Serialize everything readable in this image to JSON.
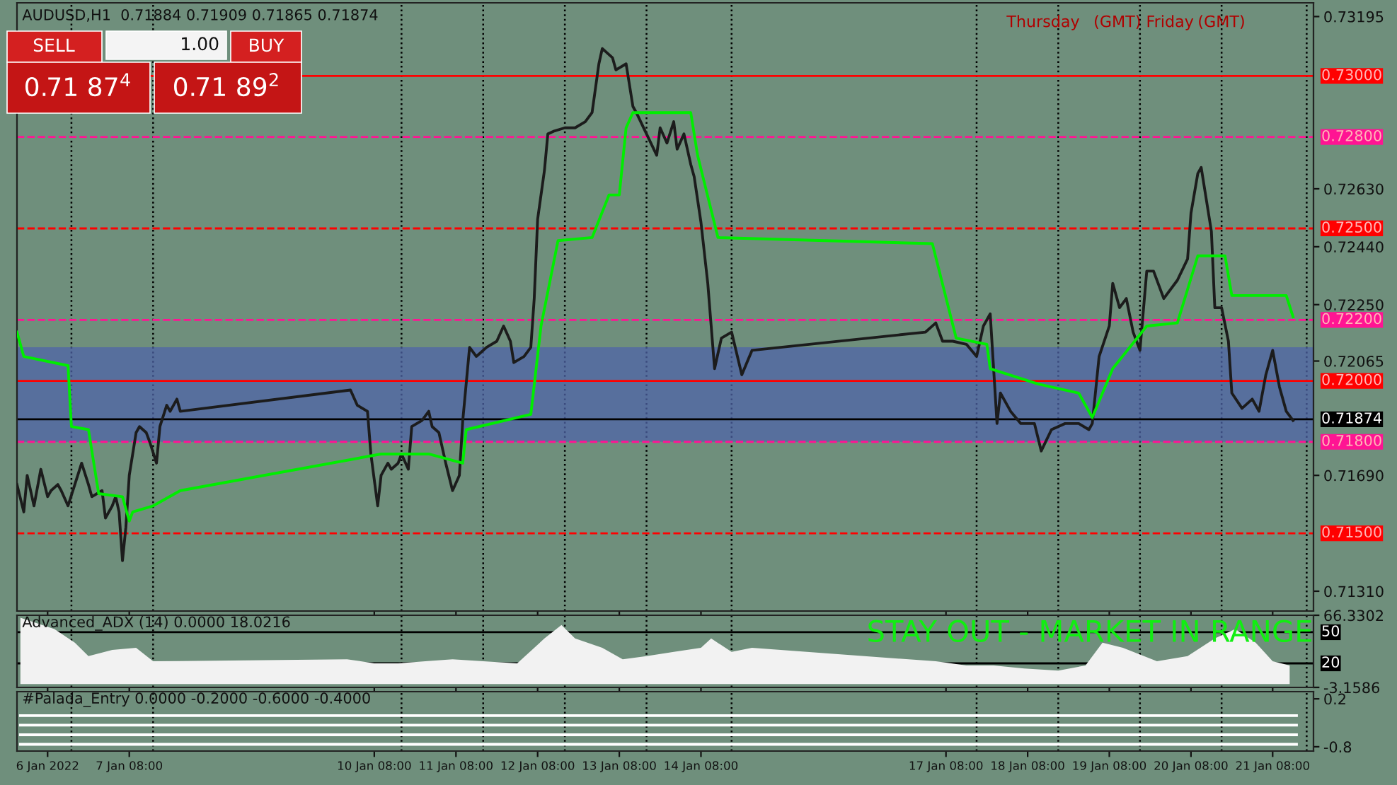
{
  "chart_data": [
    {
      "type": "line",
      "title": "AUDUSD,H1  0.71884 0.71909 0.71865 0.71874",
      "tick_labels": "y",
      "legend": false,
      "grid": false,
      "annotations": [
        "Thursday",
        "(GMT) Friday",
        "(GMT)",
        "SELL",
        "1.00",
        "BUY",
        "0.71 87$^{4}$",
        "0.71 89$^{2}$"
      ],
      "xlim": [
        "2022-01-05T23:00",
        "2022-01-21T20:00"
      ],
      "xticks": [
        "2022-01-06T08:00",
        "2022-01-07T08:00",
        "2022-01-10T08:00",
        "2022-01-11T08:00",
        "2022-01-12T08:00",
        "2022-01-13T08:00",
        "2022-01-14T08:00",
        "2022-01-17T08:00",
        "2022-01-18T08:00",
        "2022-01-19T08:00",
        "2022-01-20T08:00",
        "2022-01-21T08:00"
      ],
      "ylim": [
        0.71245,
        0.7324
      ],
      "yticks": [
        0.73195,
        {
          "value": 0.7263,
          "label": "0.72630"
        },
        {
          "value": 0.7244,
          "label": "0.72440"
        },
        {
          "value": 0.7225,
          "label": "0.72250"
        },
        0.72065,
        {
          "value": 0.7169,
          "label": "0.71690"
        },
        {
          "value": 0.7131,
          "label": "0.71310"
        }
      ],
      "series": [
        {
          "color": "#1c1c1c",
          "x": [
            "2022-01-05T23:00",
            "2022-01-06T01:00",
            "2022-01-06T02:00",
            "2022-01-06T04:00",
            "2022-01-06T06:00",
            "2022-01-06T08:00",
            "2022-01-06T09:00",
            "2022-01-06T11:00",
            "2022-01-06T12:00",
            "2022-01-06T14:00",
            "2022-01-06T16:00",
            "2022-01-06T18:00",
            "2022-01-06T20:00",
            "2022-01-06T21:00",
            "2022-01-07T00:00",
            "2022-01-07T01:00",
            "2022-01-07T03:00",
            "2022-01-07T04:00",
            "2022-01-07T05:00",
            "2022-01-07T06:00",
            "2022-01-07T07:00",
            "2022-01-07T08:00",
            "2022-01-07T10:00",
            "2022-01-07T11:00",
            "2022-01-07T13:00",
            "2022-01-07T14:00",
            "2022-01-07T16:00",
            "2022-01-07T17:00",
            "2022-01-07T19:00",
            "2022-01-07T20:00",
            "2022-01-07T22:00",
            "2022-01-07T23:00",
            "2022-01-10T01:00",
            "2022-01-10T03:00",
            "2022-01-10T06:00",
            "2022-01-10T07:00",
            "2022-01-10T09:00",
            "2022-01-10T10:00",
            "2022-01-10T12:00",
            "2022-01-10T13:00",
            "2022-01-10T15:00",
            "2022-01-10T16:00",
            "2022-01-10T18:00",
            "2022-01-10T19:00",
            "2022-01-10T22:00",
            "2022-01-11T00:00",
            "2022-01-11T01:00",
            "2022-01-11T03:00",
            "2022-01-11T05:00",
            "2022-01-11T07:00",
            "2022-01-11T09:00",
            "2022-01-11T10:00",
            "2022-01-11T12:00",
            "2022-01-11T14:00",
            "2022-01-11T17:00",
            "2022-01-11T20:00",
            "2022-01-11T22:00",
            "2022-01-12T00:00",
            "2022-01-12T01:00",
            "2022-01-12T04:00",
            "2022-01-12T06:00",
            "2022-01-12T07:00",
            "2022-01-12T08:00",
            "2022-01-12T10:00",
            "2022-01-12T11:00",
            "2022-01-12T13:00",
            "2022-01-12T16:00",
            "2022-01-12T19:00",
            "2022-01-12T22:00",
            "2022-01-13T00:00",
            "2022-01-13T02:00",
            "2022-01-13T03:00",
            "2022-01-13T06:00",
            "2022-01-13T07:00",
            "2022-01-13T10:00",
            "2022-01-13T12:00",
            "2022-01-13T13:00",
            "2022-01-13T16:00",
            "2022-01-13T19:00",
            "2022-01-13T20:00",
            "2022-01-13T22:00",
            "2022-01-14T00:00",
            "2022-01-14T01:00",
            "2022-01-14T03:00",
            "2022-01-14T05:00",
            "2022-01-14T06:00",
            "2022-01-14T08:00",
            "2022-01-14T10:00",
            "2022-01-14T11:00",
            "2022-01-14T12:00",
            "2022-01-14T14:00",
            "2022-01-14T17:00",
            "2022-01-14T20:00",
            "2022-01-14T23:00",
            "2022-01-17T02:00",
            "2022-01-17T05:00",
            "2022-01-17T07:00",
            "2022-01-17T10:00",
            "2022-01-17T14:00",
            "2022-01-17T17:00",
            "2022-01-17T19:00",
            "2022-01-17T21:00",
            "2022-01-17T23:00",
            "2022-01-18T00:00",
            "2022-01-18T03:00",
            "2022-01-18T06:00",
            "2022-01-18T10:00",
            "2022-01-18T12:00",
            "2022-01-18T15:00",
            "2022-01-18T19:00",
            "2022-01-18T23:00",
            "2022-01-19T02:00",
            "2022-01-19T03:00",
            "2022-01-19T05:00",
            "2022-01-19T08:00",
            "2022-01-19T09:00",
            "2022-01-19T11:00",
            "2022-01-19T13:00",
            "2022-01-19T15:00",
            "2022-01-19T17:00",
            "2022-01-19T19:00",
            "2022-01-19T21:00",
            "2022-01-20T00:00",
            "2022-01-20T04:00",
            "2022-01-20T07:00",
            "2022-01-20T08:00",
            "2022-01-20T10:00",
            "2022-01-20T11:00",
            "2022-01-20T12:00",
            "2022-01-20T14:00",
            "2022-01-20T15:00",
            "2022-01-20T17:00",
            "2022-01-20T19:00",
            "2022-01-20T20:00",
            "2022-01-20T23:00",
            "2022-01-21T02:00",
            "2022-01-21T04:00",
            "2022-01-21T06:00",
            "2022-01-21T08:00",
            "2022-01-21T10:00",
            "2022-01-21T12:00",
            "2022-01-21T14:00"
          ],
          "values": [
            0.7166,
            0.7157,
            0.7169,
            0.7159,
            0.7171,
            0.7162,
            0.7164,
            0.7166,
            0.7164,
            0.7159,
            0.7166,
            0.7173,
            0.7166,
            0.7162,
            0.7164,
            0.7155,
            0.7159,
            0.7162,
            0.7157,
            0.7141,
            0.7152,
            0.7169,
            0.7183,
            0.7185,
            0.7183,
            0.718,
            0.7173,
            0.7185,
            0.7192,
            0.719,
            0.7194,
            0.719,
            0.7197,
            0.7192,
            0.719,
            0.7176,
            0.7159,
            0.7169,
            0.7173,
            0.7171,
            0.7173,
            0.7176,
            0.7171,
            0.7185,
            0.7187,
            0.719,
            0.7185,
            0.7183,
            0.7173,
            0.7164,
            0.7169,
            0.7187,
            0.7211,
            0.7208,
            0.7211,
            0.7213,
            0.7218,
            0.7213,
            0.7206,
            0.7208,
            0.7211,
            0.7227,
            0.7253,
            0.7269,
            0.7281,
            0.7282,
            0.7283,
            0.7283,
            0.7285,
            0.7288,
            0.7304,
            0.7309,
            0.7306,
            0.7302,
            0.7304,
            0.729,
            0.7288,
            0.7281,
            0.7274,
            0.7283,
            0.7278,
            0.7285,
            0.7276,
            0.7281,
            0.7271,
            0.7267,
            0.7252,
            0.7232,
            0.7218,
            0.7204,
            0.7214,
            0.7216,
            0.7202,
            0.721,
            0.7216,
            0.7219,
            0.7213,
            0.7213,
            0.7212,
            0.7208,
            0.7218,
            0.7222,
            0.7186,
            0.7196,
            0.719,
            0.7186,
            0.7186,
            0.7177,
            0.7184,
            0.7186,
            0.7186,
            0.7184,
            0.7186,
            0.7208,
            0.7218,
            0.7232,
            0.7224,
            0.7227,
            0.7216,
            0.721,
            0.7236,
            0.7236,
            0.7227,
            0.7233,
            0.724,
            0.7255,
            0.7268,
            0.727,
            0.7263,
            0.7249,
            0.7224,
            0.7224,
            0.7213,
            0.7196,
            0.7191,
            0.7194,
            0.719,
            0.7202,
            0.721,
            0.7198,
            0.719,
            0.7187
          ]
        },
        {
          "color": "#00ee00",
          "x": [
            "2022-01-05T23:00",
            "2022-01-06T01:00",
            "2022-01-06T14:00",
            "2022-01-06T15:00",
            "2022-01-06T20:00",
            "2022-01-06T23:00",
            "2022-01-07T06:00",
            "2022-01-07T08:00",
            "2022-01-07T09:00",
            "2022-01-07T15:00",
            "2022-01-07T23:00",
            "2022-01-10T10:00",
            "2022-01-11T00:00",
            "2022-01-11T10:00",
            "2022-01-11T11:00",
            "2022-01-12T06:00",
            "2022-01-12T09:00",
            "2022-01-12T14:00",
            "2022-01-13T00:00",
            "2022-01-13T05:00",
            "2022-01-13T08:00",
            "2022-01-13T10:00",
            "2022-01-13T12:00",
            "2022-01-14T05:00",
            "2022-01-14T07:00",
            "2022-01-14T13:00",
            "2022-01-17T04:00",
            "2022-01-17T11:00",
            "2022-01-17T20:00",
            "2022-01-17T21:00",
            "2022-01-18T11:00",
            "2022-01-18T23:00",
            "2022-01-19T03:00",
            "2022-01-19T09:00",
            "2022-01-19T19:00",
            "2022-01-20T04:00",
            "2022-01-20T10:00",
            "2022-01-20T18:00",
            "2022-01-20T20:00",
            "2022-01-21T12:00",
            "2022-01-21T14:00"
          ],
          "values": [
            0.7216,
            0.7208,
            0.7205,
            0.7185,
            0.7184,
            0.7163,
            0.7162,
            0.7154,
            0.7157,
            0.7159,
            0.7164,
            0.7176,
            0.7176,
            0.7173,
            0.7184,
            0.7189,
            0.7218,
            0.7246,
            0.7247,
            0.7261,
            0.7261,
            0.7283,
            0.7288,
            0.7288,
            0.7274,
            0.7247,
            0.7245,
            0.7214,
            0.7212,
            0.7204,
            0.7199,
            0.7196,
            0.7188,
            0.7204,
            0.7218,
            0.7219,
            0.7241,
            0.7241,
            0.7228,
            0.7228,
            0.7221
          ]
        }
      ],
      "bands": [
        {
          "axis": "y",
          "from": 0.718,
          "to": 0.7211,
          "color": "#4f64a8"
        }
      ],
      "ref_lines": [
        {
          "axis": "y",
          "value": 0.73,
          "label": "0.73000",
          "color": "#ff0000",
          "line_style": "solid"
        },
        {
          "axis": "y",
          "value": 0.728,
          "label": "0.72800",
          "color": "#ff1493",
          "line_style": "dashed"
        },
        {
          "axis": "y",
          "value": 0.725,
          "label": "0.72500",
          "color": "#ff0000",
          "line_style": "dashed"
        },
        {
          "axis": "y",
          "value": 0.722,
          "label": "0.72200",
          "color": "#ff1493",
          "line_style": "dashed"
        },
        {
          "axis": "y",
          "value": 0.72,
          "label": "0.72000",
          "color": "#ff0000",
          "line_style": "solid"
        },
        {
          "axis": "y",
          "value": 0.71874,
          "label": "0.71874",
          "color": "#000000",
          "line_style": "solid"
        },
        {
          "axis": "y",
          "value": 0.718,
          "label": "0.71800",
          "color": "#ff1493",
          "line_style": "dashed"
        },
        {
          "axis": "y",
          "value": 0.715,
          "label": "0.71500",
          "color": "#ff0000",
          "line_style": "dashed"
        },
        {
          "axis": "x",
          "value": "2022-01-06T15:00",
          "color": "#000000",
          "line_style": "dotted"
        },
        {
          "axis": "x",
          "value": "2022-01-07T15:00",
          "color": "#000000",
          "line_style": "dotted"
        },
        {
          "axis": "x",
          "value": "2022-01-10T16:00",
          "color": "#000000",
          "line_style": "dotted"
        },
        {
          "axis": "x",
          "value": "2022-01-11T16:00",
          "color": "#000000",
          "line_style": "dotted"
        },
        {
          "axis": "x",
          "value": "2022-01-12T16:00",
          "color": "#000000",
          "line_style": "dotted"
        },
        {
          "axis": "x",
          "value": "2022-01-13T16:00",
          "color": "#000000",
          "line_style": "dotted"
        },
        {
          "axis": "x",
          "value": "2022-01-14T17:00",
          "color": "#000000",
          "line_style": "dotted"
        },
        {
          "axis": "x",
          "value": "2022-01-17T17:00",
          "color": "#000000",
          "line_style": "dotted"
        },
        {
          "axis": "x",
          "value": "2022-01-18T17:00",
          "color": "#000000",
          "line_style": "dotted"
        },
        {
          "axis": "x",
          "value": "2022-01-19T17:00",
          "color": "#000000",
          "line_style": "dotted"
        },
        {
          "axis": "x",
          "value": "2022-01-20T17:00",
          "color": "#000000",
          "line_style": "dotted"
        },
        {
          "axis": "x",
          "value": "2022-01-21T18:00",
          "color": "#000000",
          "line_style": "dotted"
        }
      ]
    },
    {
      "type": "area",
      "title": "Advanced_ADX (14) 0.0000 18.0216",
      "tick_labels": "y",
      "legend": false,
      "grid": false,
      "annotations": [
        "STAY OUT - MARKET IN RANGE"
      ],
      "xlim": [
        "2022-01-05T23:00",
        "2022-01-21T20:00"
      ],
      "xticks": [
        "2022-01-06T08:00",
        "2022-01-07T08:00",
        "2022-01-10T08:00",
        "2022-01-11T08:00",
        "2022-01-12T08:00",
        "2022-01-13T08:00",
        "2022-01-14T08:00",
        "2022-01-17T08:00",
        "2022-01-18T08:00",
        "2022-01-19T08:00",
        "2022-01-20T08:00",
        "2022-01-21T08:00"
      ],
      "ylim": [
        -3.1586,
        66.3302
      ],
      "yticks": [
        66.3302,
        {
          "value": -3.1586,
          "label": "-3.1586"
        }
      ],
      "series": [
        {
          "color": "#f2f2f2",
          "x": [
            "2022-01-06T00:00",
            "2022-01-06T10:00",
            "2022-01-06T16:00",
            "2022-01-06T20:00",
            "2022-01-07T03:00",
            "2022-01-07T10:00",
            "2022-01-07T15:00",
            "2022-01-10T00:00",
            "2022-01-10T08:00",
            "2022-01-10T15:00",
            "2022-01-10T23:00",
            "2022-01-11T07:00",
            "2022-01-11T16:00",
            "2022-01-12T02:00",
            "2022-01-12T10:00",
            "2022-01-12T15:00",
            "2022-01-12T19:00",
            "2022-01-13T03:00",
            "2022-01-13T09:00",
            "2022-01-13T16:00",
            "2022-01-14T00:00",
            "2022-01-14T08:00",
            "2022-01-14T11:00",
            "2022-01-14T17:00",
            "2022-01-14T23:00",
            "2022-01-17T05:00",
            "2022-01-17T14:00",
            "2022-01-17T22:00",
            "2022-01-18T07:00",
            "2022-01-18T17:00",
            "2022-01-19T01:00",
            "2022-01-19T06:00",
            "2022-01-19T12:00",
            "2022-01-19T22:00",
            "2022-01-20T07:00",
            "2022-01-20T15:00",
            "2022-01-20T21:00",
            "2022-01-21T03:00",
            "2022-01-21T08:00",
            "2022-01-21T13:00"
          ],
          "values": [
            64,
            53,
            40,
            27,
            33,
            35,
            22,
            24,
            20,
            20,
            22,
            24,
            22,
            20,
            44,
            57,
            44,
            35,
            24,
            27,
            31,
            35,
            44,
            31,
            35,
            22,
            18,
            18,
            15,
            13,
            18,
            40,
            35,
            22,
            27,
            44,
            53,
            40,
            22,
            18
          ]
        }
      ],
      "ref_lines": [
        {
          "axis": "y",
          "value": 50,
          "label": "50",
          "color": "#000000",
          "line_style": "solid"
        },
        {
          "axis": "y",
          "value": 20,
          "label": "20",
          "color": "#000000",
          "line_style": "solid"
        },
        {
          "axis": "x",
          "value": "2022-01-06T15:00",
          "color": "#000000",
          "line_style": "dotted"
        },
        {
          "axis": "x",
          "value": "2022-01-07T15:00",
          "color": "#000000",
          "line_style": "dotted"
        },
        {
          "axis": "x",
          "value": "2022-01-10T16:00",
          "color": "#000000",
          "line_style": "dotted"
        },
        {
          "axis": "x",
          "value": "2022-01-11T16:00",
          "color": "#000000",
          "line_style": "dotted"
        },
        {
          "axis": "x",
          "value": "2022-01-12T16:00",
          "color": "#000000",
          "line_style": "dotted"
        },
        {
          "axis": "x",
          "value": "2022-01-13T16:00",
          "color": "#000000",
          "line_style": "dotted"
        },
        {
          "axis": "x",
          "value": "2022-01-14T17:00",
          "color": "#000000",
          "line_style": "dotted"
        },
        {
          "axis": "x",
          "value": "2022-01-17T17:00",
          "color": "#000000",
          "line_style": "dotted"
        },
        {
          "axis": "x",
          "value": "2022-01-18T17:00",
          "color": "#000000",
          "line_style": "dotted"
        },
        {
          "axis": "x",
          "value": "2022-01-19T17:00",
          "color": "#000000",
          "line_style": "dotted"
        },
        {
          "axis": "x",
          "value": "2022-01-20T17:00",
          "color": "#000000",
          "line_style": "dotted"
        },
        {
          "axis": "x",
          "value": "2022-01-21T18:00",
          "color": "#000000",
          "line_style": "dotted"
        }
      ]
    },
    {
      "type": "line",
      "title": "#Palada_Entry 0.0000 -0.2000 -0.6000 -0.4000",
      "legend": false,
      "grid": false,
      "xlim": [
        "2022-01-05T23:00",
        "2022-01-21T20:00"
      ],
      "xticks": [
        {
          "value": "2022-01-06T08:00",
          "label": "6 Jan 2022"
        },
        {
          "value": "2022-01-07T08:00",
          "label": "7 Jan 08:00"
        },
        {
          "value": "2022-01-10T08:00",
          "label": "10 Jan 08:00"
        },
        {
          "value": "2022-01-11T08:00",
          "label": "11 Jan 08:00"
        },
        {
          "value": "2022-01-12T08:00",
          "label": "12 Jan 08:00"
        },
        {
          "value": "2022-01-13T08:00",
          "label": "13 Jan 08:00"
        },
        {
          "value": "2022-01-14T08:00",
          "label": "14 Jan 08:00"
        },
        {
          "value": "2022-01-17T08:00",
          "label": "17 Jan 08:00"
        },
        {
          "value": "2022-01-18T08:00",
          "label": "18 Jan 08:00"
        },
        {
          "value": "2022-01-19T08:00",
          "label": "19 Jan 08:00"
        },
        {
          "value": "2022-01-20T08:00",
          "label": "20 Jan 08:00"
        },
        {
          "value": "2022-01-21T08:00",
          "label": "21 Jan 08:00"
        }
      ],
      "ylim": [
        -0.89,
        0.35
      ],
      "yticks": [
        0.2,
        {
          "value": -0.8,
          "label": "-0.8"
        }
      ],
      "series": [
        {
          "color": "#ffffff",
          "x": [
            "2022-01-06T00:00",
            "2022-01-21T15:00"
          ],
          "values": [
            -0.15,
            -0.15
          ]
        },
        {
          "color": "#ffffff",
          "x": [
            "2022-01-06T00:00",
            "2022-01-21T15:00"
          ],
          "values": [
            -0.35,
            -0.35
          ]
        },
        {
          "color": "#ffffff",
          "x": [
            "2022-01-06T00:00",
            "2022-01-21T15:00"
          ],
          "values": [
            -0.55,
            -0.55
          ]
        },
        {
          "color": "#ffffff",
          "x": [
            "2022-01-06T00:00",
            "2022-01-21T15:00"
          ],
          "values": [
            -0.75,
            -0.75
          ]
        }
      ],
      "ref_lines": [
        {
          "axis": "x",
          "value": "2022-01-06T15:00",
          "color": "#000000",
          "line_style": "dotted"
        },
        {
          "axis": "x",
          "value": "2022-01-07T15:00",
          "color": "#000000",
          "line_style": "dotted"
        },
        {
          "axis": "x",
          "value": "2022-01-10T16:00",
          "color": "#000000",
          "line_style": "dotted"
        },
        {
          "axis": "x",
          "value": "2022-01-11T16:00",
          "color": "#000000",
          "line_style": "dotted"
        },
        {
          "axis": "x",
          "value": "2022-01-12T16:00",
          "color": "#000000",
          "line_style": "dotted"
        },
        {
          "axis": "x",
          "value": "2022-01-13T16:00",
          "color": "#000000",
          "line_style": "dotted"
        },
        {
          "axis": "x",
          "value": "2022-01-14T17:00",
          "color": "#000000",
          "line_style": "dotted"
        },
        {
          "axis": "x",
          "value": "2022-01-17T17:00",
          "color": "#000000",
          "line_style": "dotted"
        },
        {
          "axis": "x",
          "value": "2022-01-18T17:00",
          "color": "#000000",
          "line_style": "dotted"
        },
        {
          "axis": "x",
          "value": "2022-01-19T17:00",
          "color": "#000000",
          "line_style": "dotted"
        },
        {
          "axis": "x",
          "value": "2022-01-20T17:00",
          "color": "#000000",
          "line_style": "dotted"
        },
        {
          "axis": "x",
          "value": "2022-01-21T18:00",
          "color": "#000000",
          "line_style": "dotted"
        }
      ]
    }
  ]
}
